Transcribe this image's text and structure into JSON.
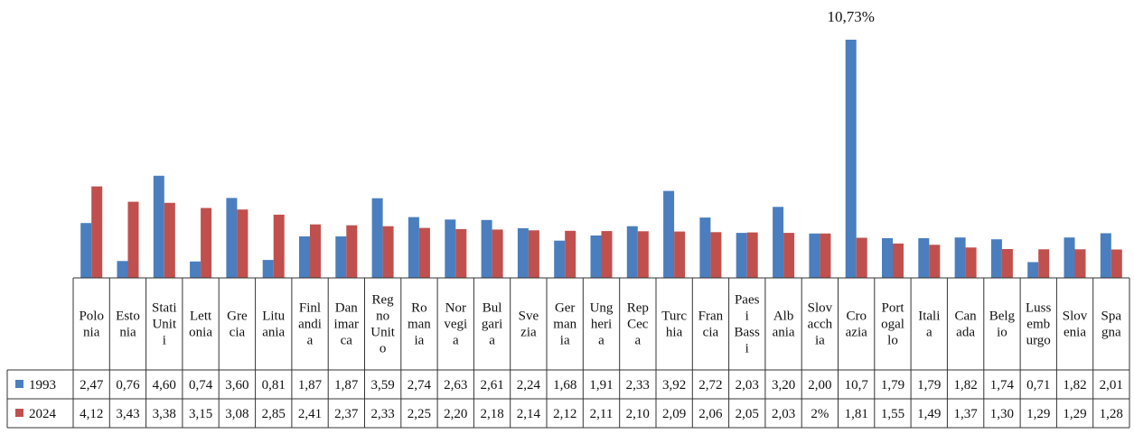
{
  "chart_data": {
    "type": "bar",
    "categories": [
      [
        "Polo",
        "nia"
      ],
      [
        "Esto",
        "nia"
      ],
      [
        "Stati",
        "Unit",
        "i"
      ],
      [
        "Lett",
        "onia"
      ],
      [
        "Gre",
        "cia"
      ],
      [
        "Litu",
        "ania"
      ],
      [
        "Finl",
        "andi",
        "a"
      ],
      [
        "Dan",
        "imar",
        "ca"
      ],
      [
        "Reg",
        "no",
        "Unit",
        "o"
      ],
      [
        "Ro",
        "man",
        "ia"
      ],
      [
        "Nor",
        "vegi",
        "a"
      ],
      [
        "Bul",
        "gari",
        "a"
      ],
      [
        "Sve",
        "zia"
      ],
      [
        "Ger",
        "man",
        "ia"
      ],
      [
        "Ung",
        "heri",
        "a"
      ],
      [
        "Rep",
        "Cec",
        "a"
      ],
      [
        "Turc",
        "hia"
      ],
      [
        "Fran",
        "cia"
      ],
      [
        "Paes",
        "i",
        "Bass",
        "i"
      ],
      [
        "Alb",
        "ania"
      ],
      [
        "Slov",
        "acch",
        "ia"
      ],
      [
        "Cro",
        "azia"
      ],
      [
        "Port",
        "ogal",
        "lo"
      ],
      [
        "Itali",
        "a"
      ],
      [
        "Can",
        "ada"
      ],
      [
        "Belg",
        "io"
      ],
      [
        "Luss",
        "emb",
        "urgo"
      ],
      [
        "Slov",
        "enia"
      ],
      [
        "Spa",
        "gna"
      ]
    ],
    "series": [
      {
        "name": "1993",
        "color": "#4a7ebf",
        "values": [
          2.47,
          0.76,
          4.6,
          0.74,
          3.6,
          0.81,
          1.87,
          1.87,
          3.59,
          2.74,
          2.63,
          2.61,
          2.24,
          1.68,
          1.91,
          2.33,
          3.92,
          2.72,
          2.03,
          3.2,
          2.0,
          10.73,
          1.79,
          1.79,
          1.82,
          1.74,
          0.71,
          1.82,
          2.01
        ],
        "labels": [
          "2,47",
          "0,76",
          "4,60",
          "0,74",
          "3,60",
          "0,81",
          "1,87",
          "1,87",
          "3,59",
          "2,74",
          "2,63",
          "2,61",
          "2,24",
          "1,68",
          "1,91",
          "2,33",
          "3,92",
          "2,72",
          "2,03",
          "3,20",
          "2,00",
          "10,7",
          "1,79",
          "1,79",
          "1,82",
          "1,74",
          "0,71",
          "1,82",
          "2,01"
        ]
      },
      {
        "name": "2024",
        "color": "#c0504d",
        "values": [
          4.12,
          3.43,
          3.38,
          3.15,
          3.08,
          2.85,
          2.41,
          2.37,
          2.33,
          2.25,
          2.2,
          2.18,
          2.14,
          2.12,
          2.11,
          2.1,
          2.09,
          2.06,
          2.05,
          2.03,
          2.0,
          1.81,
          1.55,
          1.49,
          1.37,
          1.3,
          1.29,
          1.29,
          1.28
        ],
        "labels": [
          "4,12",
          "3,43",
          "3,38",
          "3,15",
          "3,08",
          "2,85",
          "2,41",
          "2,37",
          "2,33",
          "2,25",
          "2,20",
          "2,18",
          "2,14",
          "2,12",
          "2,11",
          "2,10",
          "2,09",
          "2,06",
          "2,05",
          "2,03",
          "2%",
          "1,81",
          "1,55",
          "1,49",
          "1,37",
          "1,30",
          "1,29",
          "1,29",
          "1,28"
        ]
      }
    ],
    "annotation": "10,73%",
    "ylim": [
      0,
      10.73
    ],
    "grid": false,
    "legend": "table-left",
    "title": "",
    "xlabel": "",
    "ylabel": ""
  }
}
